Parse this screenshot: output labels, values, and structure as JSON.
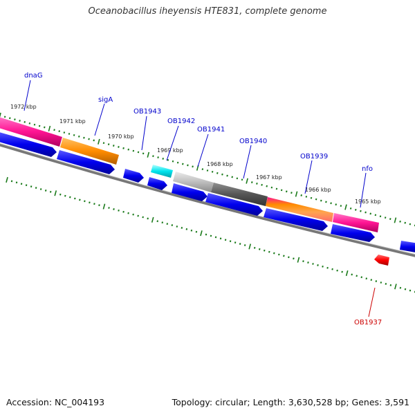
{
  "title": "Oceanobacillus iheyensis HTE831, complete genome",
  "footer": {
    "accession": "Accession: NC_004193",
    "summary": "Topology: circular; Length: 3,630,528 bp; Genes: 3,591"
  },
  "colors": {
    "background": "#ffffff",
    "forward_label": "#0000cc",
    "reverse_label": "#cc0000",
    "backbone": "#777777",
    "tick": "#1a7a1a",
    "scale_text": "#222222",
    "title_text": "#333333"
  },
  "scale_labels": [
    "1972 kbp",
    "1971 kbp",
    "1970 kbp",
    "1969 kbp",
    "1968 kbp",
    "1967 kbp",
    "1966 kbp",
    "1965 kbp"
  ],
  "forward_gene_labels": [
    "dnaG",
    "sigA",
    "OB1943",
    "OB1942",
    "OB1941",
    "OB1940",
    "OB1939",
    "nfo"
  ],
  "reverse_gene_labels": [
    "OB1937"
  ],
  "category_colors": [
    "#ff1493",
    "#ff8c00",
    "#00e5ee",
    "#bebebe",
    "#555555",
    "#ff7f50",
    "#ff1493"
  ],
  "gene_arrow_color": "#0000ee",
  "reverse_gene_color": "#ff0000"
}
